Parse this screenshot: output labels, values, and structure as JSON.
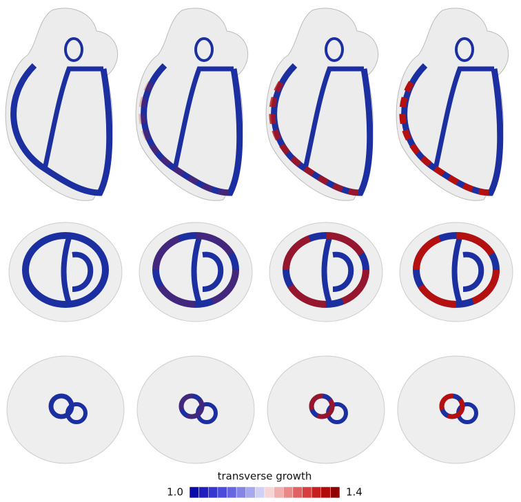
{
  "colorbar": {
    "title": "transverse growth",
    "min": {
      "value": 1,
      "label": "1.0"
    },
    "max": {
      "value": 1.4,
      "label": "1.4"
    },
    "colors": [
      "#0a0aa8",
      "#1f1fc0",
      "#3535d0",
      "#4b4bdb",
      "#6666e0",
      "#8585e6",
      "#a8a8ee",
      "#d0d0f5",
      "#f5d6d6",
      "#f0b0b0",
      "#ea8888",
      "#e26060",
      "#d83c3c",
      "#c81e1e",
      "#b00c0c",
      "#900000"
    ]
  }
}
